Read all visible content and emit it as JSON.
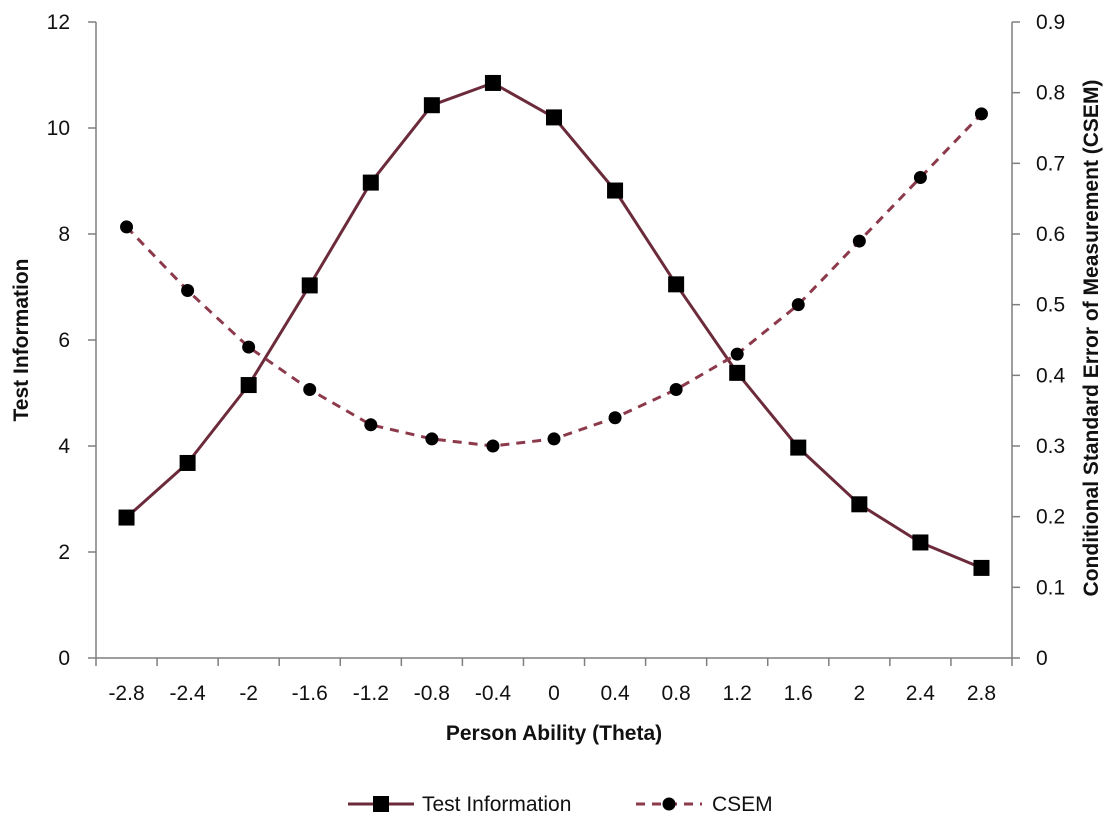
{
  "chart_data": {
    "type": "line",
    "title": "",
    "xlabel": "Person Ability (Theta)",
    "ylabel": "Test Information",
    "y2label": "Conditional Standard Error of Measurement (CSEM)",
    "x": [
      -2.8,
      -2.4,
      -2,
      -1.6,
      -1.2,
      -0.8,
      -0.4,
      0,
      0.4,
      0.8,
      1.2,
      1.6,
      2,
      2.4,
      2.8
    ],
    "x_tick_labels": [
      "-2.8",
      "-2.4",
      "-2",
      "-1.6",
      "-1.2",
      "-0.8",
      "-0.4",
      "0",
      "0.4",
      "0.8",
      "1.2",
      "1.6",
      "2",
      "2.4",
      "2.8"
    ],
    "ylim": [
      0,
      12
    ],
    "y_ticks": [
      0,
      2,
      4,
      6,
      8,
      10,
      12
    ],
    "y2lim": [
      0,
      0.9
    ],
    "y2_ticks": [
      0,
      0.1,
      0.2,
      0.3,
      0.4,
      0.5,
      0.6,
      0.7,
      0.8,
      0.9
    ],
    "y2_tick_labels": [
      "0",
      "0.1",
      "0.2",
      "0.3",
      "0.4",
      "0.5",
      "0.6",
      "0.7",
      "0.8",
      "0.9"
    ],
    "grid": false,
    "legend_position": "bottom",
    "series": [
      {
        "name": "Test Information",
        "axis": "left",
        "marker": "square",
        "line_style": "solid",
        "color": "#6b2b3a",
        "values": [
          2.65,
          3.68,
          5.15,
          7.03,
          8.97,
          10.43,
          10.85,
          10.2,
          8.82,
          7.05,
          5.38,
          3.97,
          2.9,
          2.18,
          1.7
        ]
      },
      {
        "name": "CSEM",
        "axis": "right",
        "marker": "circle",
        "line_style": "dashed",
        "color": "#8c3a4b",
        "values": [
          0.61,
          0.52,
          0.44,
          0.38,
          0.33,
          0.31,
          0.3,
          0.31,
          0.34,
          0.38,
          0.43,
          0.5,
          0.59,
          0.68,
          0.77
        ]
      }
    ]
  }
}
